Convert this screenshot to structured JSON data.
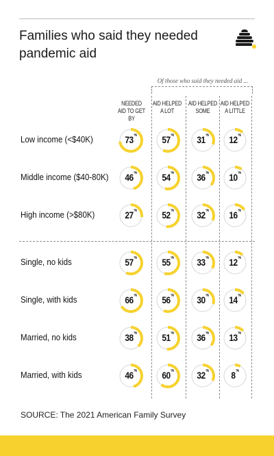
{
  "title": "Families who said they needed pandemic aid",
  "subtitle_note": "Of those who said they needed aid ...",
  "source": "SOURCE: The 2021 American Family Survey",
  "colors": {
    "accent": "#f7d22e",
    "ring_bg": "#d6d6d6",
    "text": "#1a1a1a"
  },
  "logo_icon": "beehive-icon",
  "chart_data": {
    "type": "table",
    "title": "Families who said they needed pandemic aid",
    "columns": [
      {
        "label": "NEEDED AID TO GET BY"
      },
      {
        "label": "AID HELPED A LOT"
      },
      {
        "label": "AID HELPED SOME"
      },
      {
        "label": "AID HELPED A LITTLE"
      }
    ],
    "unit": "%",
    "rows": [
      {
        "label": "Low income (<$40K)",
        "values": [
          73,
          57,
          31,
          12
        ]
      },
      {
        "label": "Middle income ($40-80K)",
        "values": [
          46,
          54,
          36,
          10
        ]
      },
      {
        "label": "High income (>$80K)",
        "values": [
          27,
          52,
          32,
          16
        ]
      },
      {
        "label": "Single, no kids",
        "values": [
          57,
          55,
          33,
          12
        ]
      },
      {
        "label": "Single, with kids",
        "values": [
          66,
          56,
          30,
          14
        ]
      },
      {
        "label": "Married, no kids",
        "values": [
          38,
          51,
          36,
          13
        ]
      },
      {
        "label": "Married, with kids",
        "values": [
          46,
          60,
          32,
          8
        ]
      }
    ]
  }
}
